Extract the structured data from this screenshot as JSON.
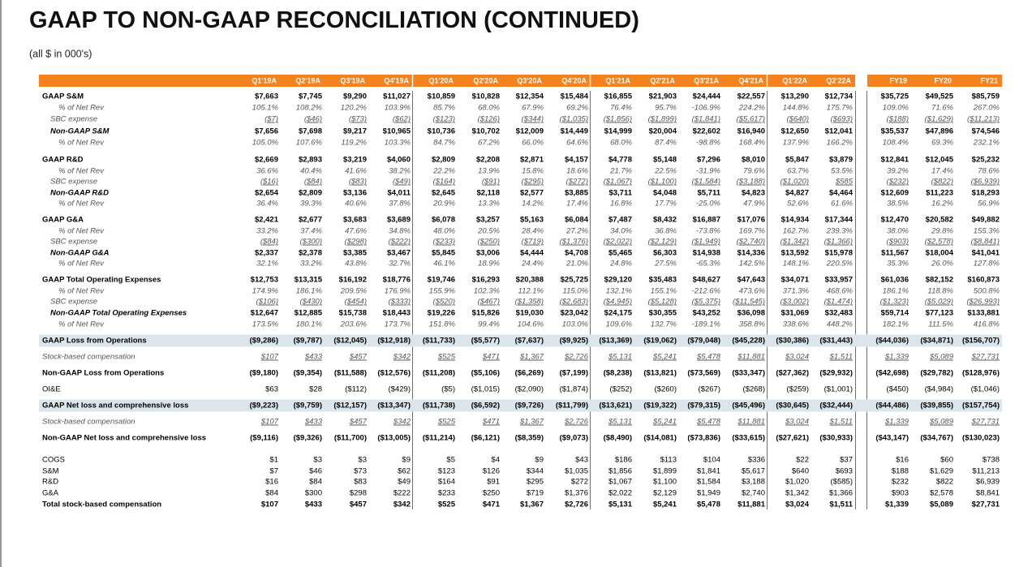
{
  "title": "GAAP TO NON-GAAP RECONCILIATION (CONTINUED)",
  "subtitle": "(all $ in 000's)",
  "columns": [
    "Q1'19A",
    "Q2'19A",
    "Q3'19A",
    "Q4'19A",
    "Q1'20A",
    "Q2'20A",
    "Q3'20A",
    "Q4'20A",
    "Q1'21A",
    "Q2'21A",
    "Q3'21A",
    "Q4'21A",
    "Q1'22A",
    "Q2'22A",
    "FY19",
    "FY20",
    "FY21"
  ],
  "rows": [
    {
      "label": "GAAP S&M",
      "values": [
        "$7,663",
        "$7,745",
        "$9,290",
        "$11,027",
        "$10,859",
        "$10,828",
        "$12,354",
        "$15,484",
        "$16,855",
        "$21,903",
        "$24,444",
        "$22,557",
        "$13,290",
        "$12,734",
        "$35,725",
        "$49,525",
        "$85,759"
      ]
    },
    {
      "label": "% of Net Rev",
      "values": [
        "105.1%",
        "108.2%",
        "120.2%",
        "103.9%",
        "85.7%",
        "68.0%",
        "67.9%",
        "69.2%",
        "76.4%",
        "95.7%",
        "-106.9%",
        "224.2%",
        "144.8%",
        "175.7%",
        "109.0%",
        "71.6%",
        "267.0%"
      ]
    },
    {
      "label": "SBC expense",
      "values": [
        "($7)",
        "($46)",
        "($73)",
        "($62)",
        "($123)",
        "($126)",
        "($344)",
        "($1,035)",
        "($1,856)",
        "($1,899)",
        "($1,841)",
        "($5,617)",
        "($640)",
        "($693)",
        "($188)",
        "($1,629)",
        "($11,213)"
      ]
    },
    {
      "label": "Non-GAAP S&M",
      "values": [
        "$7,656",
        "$7,698",
        "$9,217",
        "$10,965",
        "$10,736",
        "$10,702",
        "$12,009",
        "$14,449",
        "$14,999",
        "$20,004",
        "$22,602",
        "$16,940",
        "$12,650",
        "$12,041",
        "$35,537",
        "$47,896",
        "$74,546"
      ]
    },
    {
      "label": "% of Net Rev",
      "values": [
        "105.0%",
        "107.6%",
        "119.2%",
        "103.3%",
        "84.7%",
        "67.2%",
        "66.0%",
        "64.6%",
        "68.0%",
        "87.4%",
        "-98.8%",
        "168.4%",
        "137.9%",
        "166.2%",
        "108.4%",
        "69.3%",
        "232.1%"
      ]
    },
    {
      "label": "GAAP R&D",
      "values": [
        "$2,669",
        "$2,893",
        "$3,219",
        "$4,060",
        "$2,809",
        "$2,208",
        "$2,871",
        "$4,157",
        "$4,778",
        "$5,148",
        "$7,296",
        "$8,010",
        "$5,847",
        "$3,879",
        "$12,841",
        "$12,045",
        "$25,232"
      ]
    },
    {
      "label": "% of Net Rev",
      "values": [
        "36.6%",
        "40.4%",
        "41.6%",
        "38.2%",
        "22.2%",
        "13.9%",
        "15.8%",
        "18.6%",
        "21.7%",
        "22.5%",
        "-31.9%",
        "79.6%",
        "63.7%",
        "53.5%",
        "39.2%",
        "17.4%",
        "78.6%"
      ]
    },
    {
      "label": "SBC expense",
      "values": [
        "($16)",
        "($84)",
        "($83)",
        "($49)",
        "($164)",
        "($91)",
        "($295)",
        "($272)",
        "($1,067)",
        "($1,100)",
        "($1,584)",
        "($3,188)",
        "($1,020)",
        "$585",
        "($232)",
        "($822)",
        "($6,939)"
      ]
    },
    {
      "label": "Non-GAAP R&D",
      "values": [
        "$2,654",
        "$2,809",
        "$3,136",
        "$4,011",
        "$2,645",
        "$2,118",
        "$2,577",
        "$3,885",
        "$3,711",
        "$4,048",
        "$5,711",
        "$4,823",
        "$4,827",
        "$4,464",
        "$12,609",
        "$11,223",
        "$18,293"
      ]
    },
    {
      "label": "% of Net Rev",
      "values": [
        "36.4%",
        "39.3%",
        "40.6%",
        "37.8%",
        "20.9%",
        "13.3%",
        "14.2%",
        "17.4%",
        "16.8%",
        "17.7%",
        "-25.0%",
        "47.9%",
        "52.6%",
        "61.6%",
        "38.5%",
        "16.2%",
        "56.9%"
      ]
    },
    {
      "label": "GAAP G&A",
      "values": [
        "$2,421",
        "$2,677",
        "$3,683",
        "$3,689",
        "$6,078",
        "$3,257",
        "$5,163",
        "$6,084",
        "$7,487",
        "$8,432",
        "$16,887",
        "$17,076",
        "$14,934",
        "$17,344",
        "$12,470",
        "$20,582",
        "$49,882"
      ]
    },
    {
      "label": "% of Net Rev",
      "values": [
        "33.2%",
        "37.4%",
        "47.6%",
        "34.8%",
        "48.0%",
        "20.5%",
        "28.4%",
        "27.2%",
        "34.0%",
        "36.8%",
        "-73.8%",
        "169.7%",
        "162.7%",
        "239.3%",
        "38.0%",
        "29.8%",
        "155.3%"
      ]
    },
    {
      "label": "SBC expense",
      "values": [
        "($84)",
        "($300)",
        "($298)",
        "($222)",
        "($233)",
        "($250)",
        "($719)",
        "($1,376)",
        "($2,022)",
        "($2,129)",
        "($1,949)",
        "($2,740)",
        "($1,342)",
        "($1,366)",
        "($903)",
        "($2,578)",
        "($8,841)"
      ]
    },
    {
      "label": "Non-GAAP G&A",
      "values": [
        "$2,337",
        "$2,378",
        "$3,385",
        "$3,467",
        "$5,845",
        "$3,006",
        "$4,444",
        "$4,708",
        "$5,465",
        "$6,303",
        "$14,938",
        "$14,336",
        "$13,592",
        "$15,978",
        "$11,567",
        "$18,004",
        "$41,041"
      ]
    },
    {
      "label": "% of Net Rev",
      "values": [
        "32.1%",
        "33.2%",
        "43.8%",
        "32.7%",
        "46.1%",
        "18.9%",
        "24.4%",
        "21.0%",
        "24.8%",
        "27.5%",
        "-65.3%",
        "142.5%",
        "148.1%",
        "220.5%",
        "35.3%",
        "26.0%",
        "127.8%"
      ]
    },
    {
      "label": "GAAP Total Operating Expenses",
      "values": [
        "$12,753",
        "$13,315",
        "$16,192",
        "$18,776",
        "$19,746",
        "$16,293",
        "$20,388",
        "$25,725",
        "$29,120",
        "$35,483",
        "$48,627",
        "$47,643",
        "$34,071",
        "$33,957",
        "$61,036",
        "$82,152",
        "$160,873"
      ]
    },
    {
      "label": "% of Net Rev",
      "values": [
        "174.9%",
        "186.1%",
        "209.5%",
        "176.9%",
        "155.9%",
        "102.3%",
        "112.1%",
        "115.0%",
        "132.1%",
        "155.1%",
        "-212.6%",
        "473.6%",
        "371.3%",
        "468.6%",
        "186.1%",
        "118.8%",
        "500.8%"
      ]
    },
    {
      "label": "SBC expense",
      "values": [
        "($106)",
        "($430)",
        "($454)",
        "($333)",
        "($520)",
        "($467)",
        "($1,358)",
        "($2,683)",
        "($4,945)",
        "($5,128)",
        "($5,375)",
        "($11,545)",
        "($3,002)",
        "($1,474)",
        "($1,323)",
        "($5,029)",
        "($26,993)"
      ]
    },
    {
      "label": "Non-GAAP Total Operating Expenses",
      "values": [
        "$12,647",
        "$12,885",
        "$15,738",
        "$18,443",
        "$19,226",
        "$15,826",
        "$19,030",
        "$23,042",
        "$24,175",
        "$30,355",
        "$43,252",
        "$36,098",
        "$31,069",
        "$32,483",
        "$59,714",
        "$77,123",
        "$133,881"
      ]
    },
    {
      "label": "% of Net Rev",
      "values": [
        "173.5%",
        "180.1%",
        "203.6%",
        "173.7%",
        "151.8%",
        "99.4%",
        "104.6%",
        "103.0%",
        "109.6%",
        "132.7%",
        "-189.1%",
        "358.8%",
        "338.6%",
        "448.2%",
        "182.1%",
        "111.5%",
        "416.8%"
      ]
    },
    {
      "label": "GAAP Loss from Operations",
      "values": [
        "($9,286)",
        "($9,787)",
        "($12,045)",
        "($12,918)",
        "($11,733)",
        "($5,577)",
        "($7,637)",
        "($9,925)",
        "($13,369)",
        "($19,062)",
        "($79,048)",
        "($45,228)",
        "($30,386)",
        "($31,443)",
        "($44,036)",
        "($34,871)",
        "($156,707)"
      ]
    },
    {
      "label": "Stock-based compensation",
      "values": [
        "$107",
        "$433",
        "$457",
        "$342",
        "$525",
        "$471",
        "$1,367",
        "$2,726",
        "$5,131",
        "$5,241",
        "$5,478",
        "$11,881",
        "$3,024",
        "$1,511",
        "$1,339",
        "$5,089",
        "$27,731"
      ]
    },
    {
      "label": "Non-GAAP Loss from Operations",
      "values": [
        "($9,180)",
        "($9,354)",
        "($11,588)",
        "($12,576)",
        "($11,208)",
        "($5,106)",
        "($6,269)",
        "($7,199)",
        "($8,238)",
        "($13,821)",
        "($73,569)",
        "($33,347)",
        "($27,362)",
        "($29,932)",
        "($42,698)",
        "($29,782)",
        "($128,976)"
      ]
    },
    {
      "label": "OI&E",
      "values": [
        "$63",
        "$28",
        "($112)",
        "($429)",
        "($5)",
        "($1,015)",
        "($2,090)",
        "($1,874)",
        "($252)",
        "($260)",
        "($267)",
        "($268)",
        "($259)",
        "($1,001)",
        "($450)",
        "($4,984)",
        "($1,046)"
      ]
    },
    {
      "label": "GAAP Net loss and comprehensive loss",
      "values": [
        "($9,223)",
        "($9,759)",
        "($12,157)",
        "($13,347)",
        "($11,738)",
        "($6,592)",
        "($9,726)",
        "($11,799)",
        "($13,621)",
        "($19,322)",
        "($79,315)",
        "($45,496)",
        "($30,645)",
        "($32,444)",
        "($44,486)",
        "($39,855)",
        "($157,754)"
      ]
    },
    {
      "label": "Stock-based compensation",
      "values": [
        "$107",
        "$433",
        "$457",
        "$342",
        "$525",
        "$471",
        "$1,367",
        "$2,726",
        "$5,131",
        "$5,241",
        "$5,478",
        "$11,881",
        "$3,024",
        "$1,511",
        "$1,339",
        "$5,089",
        "$27,731"
      ]
    },
    {
      "label": "Non-GAAP Net loss and comprehensive loss",
      "values": [
        "($9,116)",
        "($9,326)",
        "($11,700)",
        "($13,005)",
        "($11,214)",
        "($6,121)",
        "($8,359)",
        "($9,073)",
        "($8,490)",
        "($14,081)",
        "($73,836)",
        "($33,615)",
        "($27,621)",
        "($30,933)",
        "($43,147)",
        "($34,767)",
        "($130,023)"
      ]
    },
    {
      "label": "COGS",
      "values": [
        "$1",
        "$3",
        "$3",
        "$9",
        "$5",
        "$4",
        "$9",
        "$43",
        "$186",
        "$113",
        "$104",
        "$336",
        "$22",
        "$37",
        "$16",
        "$60",
        "$738"
      ]
    },
    {
      "label": "S&M",
      "values": [
        "$7",
        "$46",
        "$73",
        "$62",
        "$123",
        "$126",
        "$344",
        "$1,035",
        "$1,856",
        "$1,899",
        "$1,841",
        "$5,617",
        "$640",
        "$693",
        "$188",
        "$1,629",
        "$11,213"
      ]
    },
    {
      "label": "R&D",
      "values": [
        "$16",
        "$84",
        "$83",
        "$49",
        "$164",
        "$91",
        "$295",
        "$272",
        "$1,067",
        "$1,100",
        "$1,584",
        "$3,188",
        "$1,020",
        "($585)",
        "$232",
        "$822",
        "$6,939"
      ]
    },
    {
      "label": "G&A",
      "values": [
        "$84",
        "$300",
        "$298",
        "$222",
        "$233",
        "$250",
        "$719",
        "$1,376",
        "$2,022",
        "$2,129",
        "$1,949",
        "$2,740",
        "$1,342",
        "$1,366",
        "$903",
        "$2,578",
        "$8,841"
      ]
    },
    {
      "label": "Total stock-based compensation",
      "values": [
        "$107",
        "$433",
        "$457",
        "$342",
        "$525",
        "$471",
        "$1,367",
        "$2,726",
        "$5,131",
        "$5,241",
        "$5,478",
        "$11,881",
        "$3,024",
        "$1,511",
        "$1,339",
        "$5,089",
        "$27,731"
      ]
    }
  ]
}
